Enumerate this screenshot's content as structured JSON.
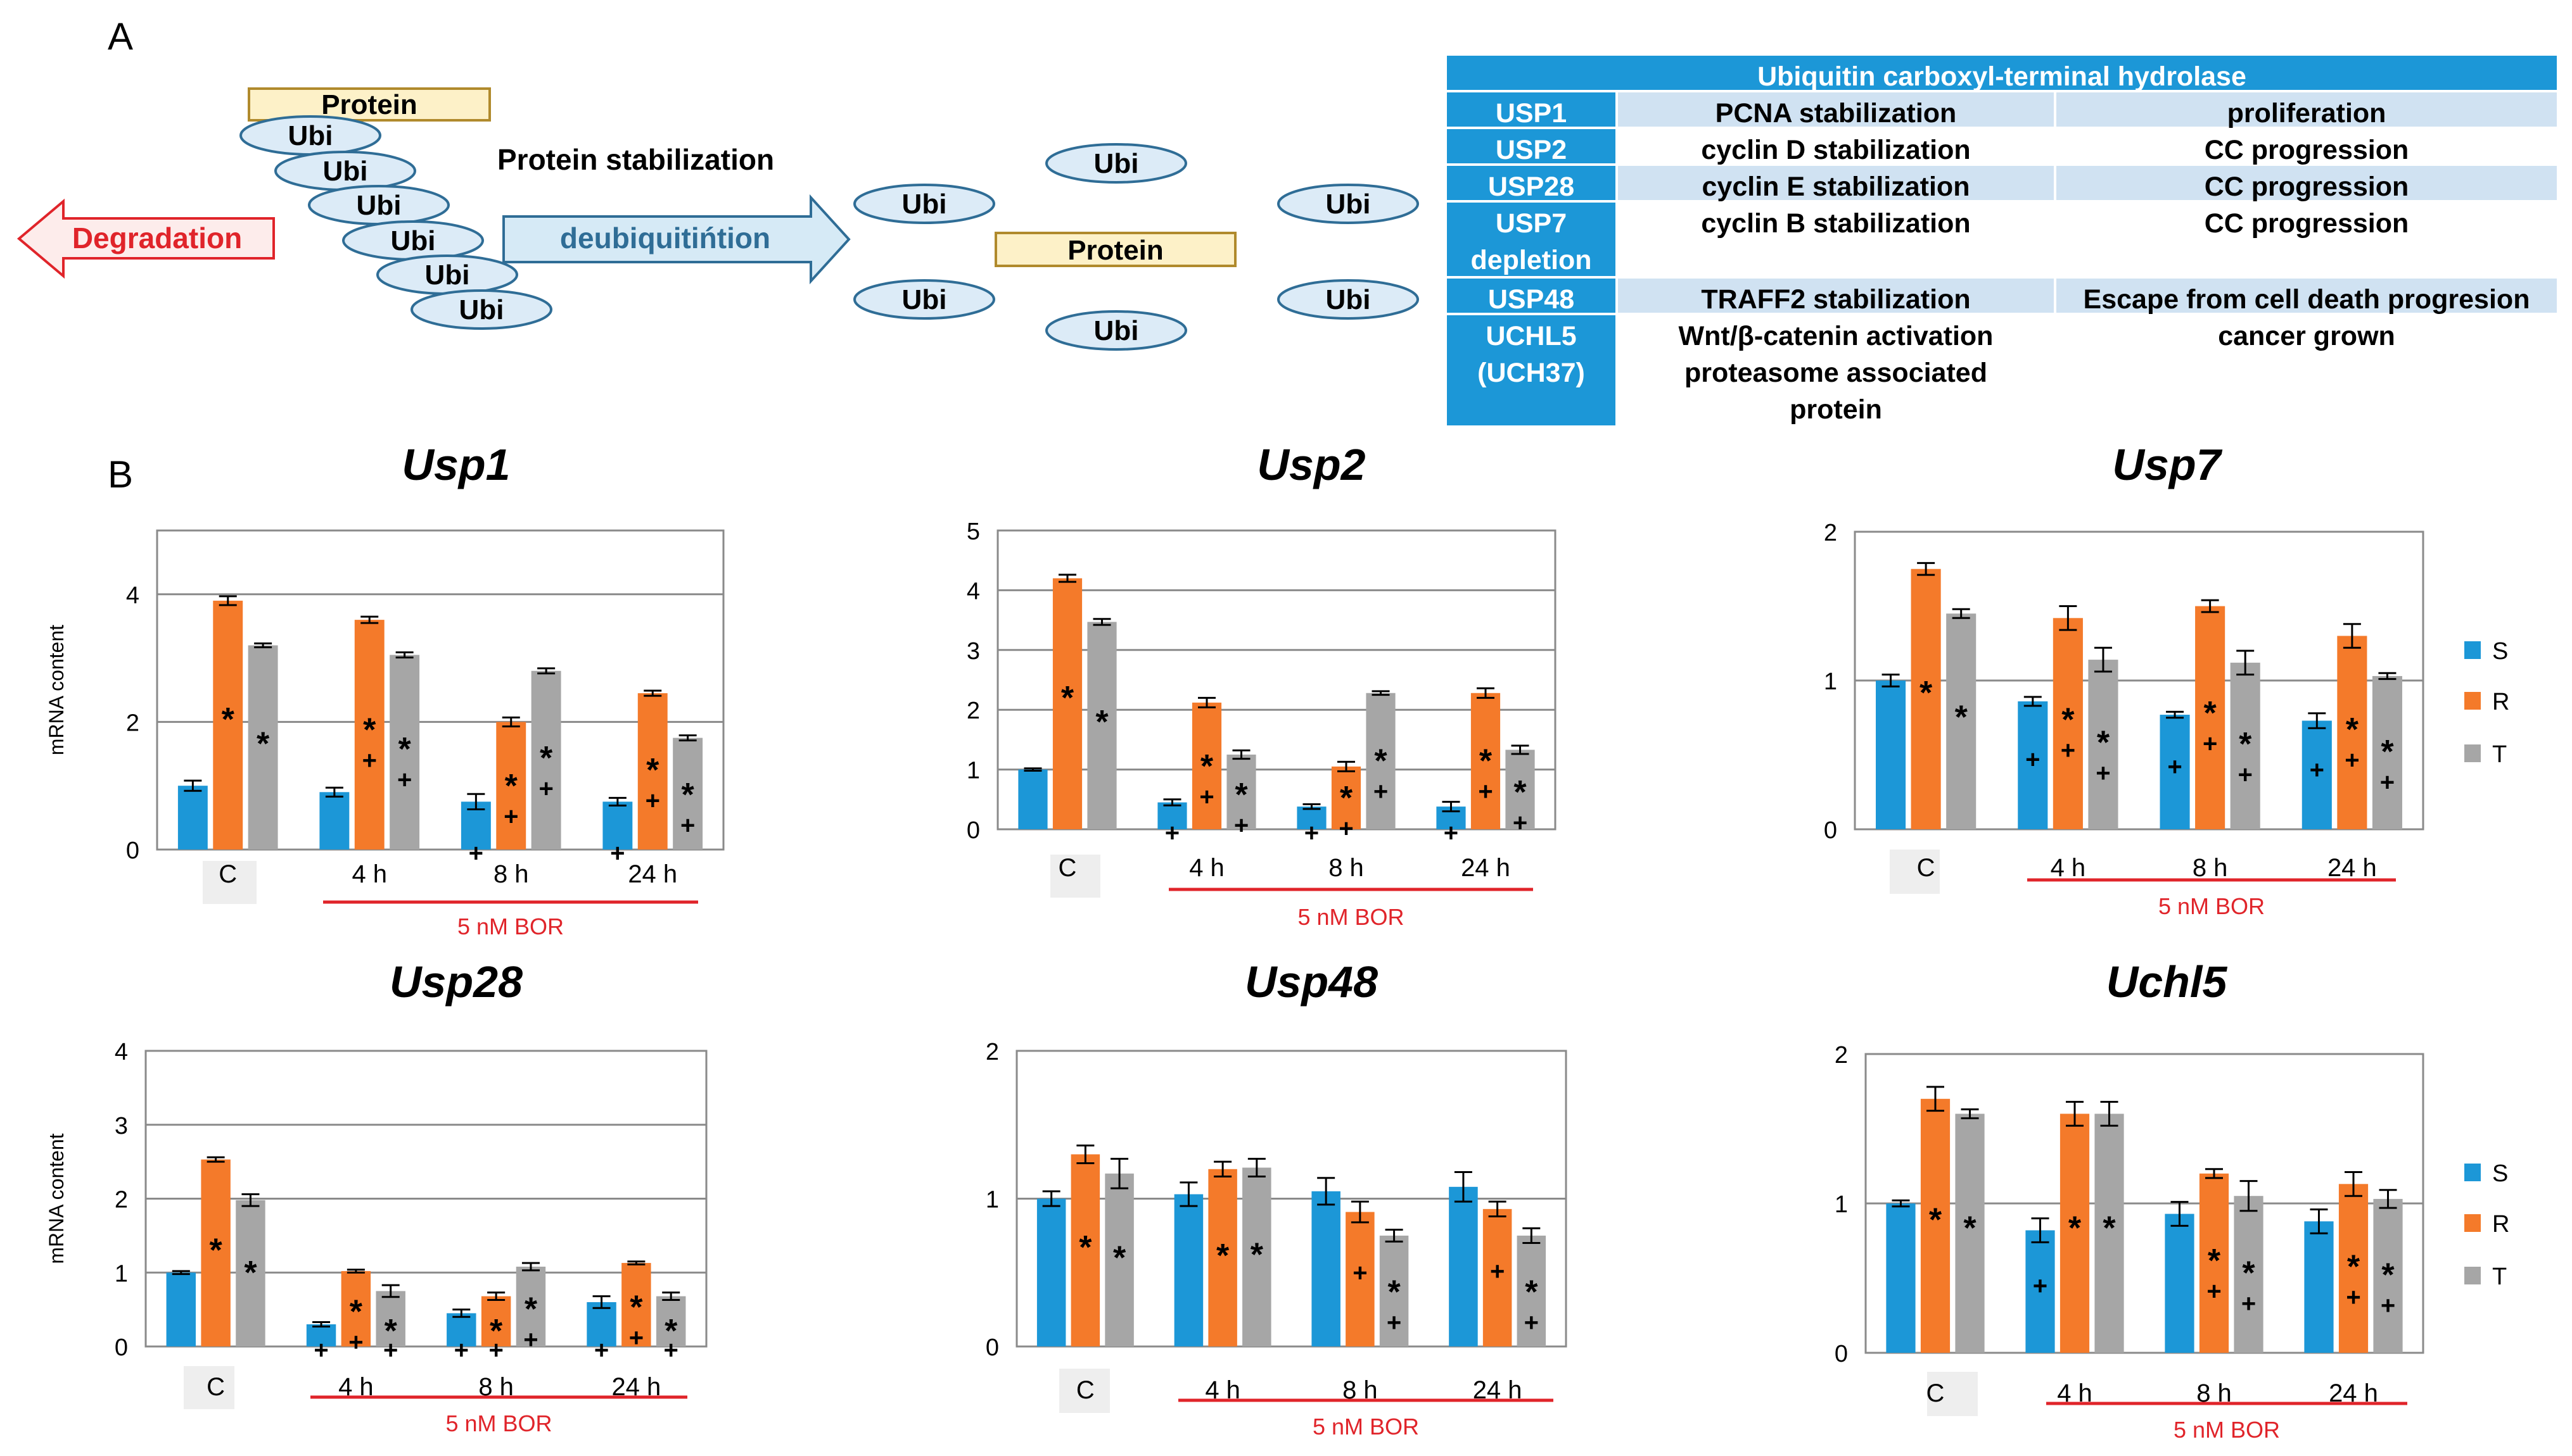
{
  "panel_labels": {
    "a": "A",
    "b": "B"
  },
  "diagram": {
    "protein_label": "Protein",
    "ubi_label": "Ubi",
    "degradation_label": "Degradation",
    "stabilization_label": "Protein stabilization",
    "deubiquitination_label": "deubiquitińtion"
  },
  "table": {
    "title": "Ubiquitin  carboxyl-terminal hydrolase",
    "rows": [
      {
        "gene": "USP1",
        "effect": "PCNA stabilization",
        "outcome": "proliferation"
      },
      {
        "gene": "USP2",
        "effect": "cyclin D stabilization",
        "outcome": "CC progression"
      },
      {
        "gene": "USP28",
        "effect": "cyclin E stabilization",
        "outcome": "CC progression"
      },
      {
        "gene": "USP7\ndepletion",
        "effect": "cyclin B stabilization",
        "outcome": "CC progression"
      },
      {
        "gene": "USP48",
        "effect": "TRAFF2 stabilization",
        "outcome": "Escape from cell death progresion"
      },
      {
        "gene": "UCHL5\n(UCH37)",
        "effect": "Wnt/β-catenin activation\nproteasome associated\nprotein",
        "outcome": "cancer grown"
      }
    ]
  },
  "colors": {
    "S": "#1c97d7",
    "R": "#f47a2a",
    "T": "#a6a6a6",
    "treatment_line": "#e0242a",
    "table_header": "#1c97d7",
    "table_light": "#d0e2f2",
    "degradation": "#e0242a",
    "deubiquitination_fill": "#d6eaf6",
    "protein_fill": "#fdf1c8",
    "ubi_fill": "#dcebf7"
  },
  "chart_data": [
    {
      "type": "bar",
      "title": "Usp1",
      "ylabel": "mRNA content",
      "ylim": [
        0,
        5
      ],
      "yticks": [
        0,
        2,
        4
      ],
      "categories": [
        "C",
        "4 h",
        "8 h",
        "24 h"
      ],
      "treatment_label": "5 nM BOR",
      "grid": true,
      "series": [
        {
          "name": "S",
          "values": [
            1.0,
            0.9,
            0.75,
            0.75
          ],
          "errors": [
            0.08,
            0.07,
            0.12,
            0.06
          ],
          "marks": [
            "",
            "",
            "+",
            "+"
          ]
        },
        {
          "name": "R",
          "values": [
            3.9,
            3.6,
            2.0,
            2.45
          ],
          "errors": [
            0.07,
            0.05,
            0.07,
            0.04
          ],
          "marks": [
            "*",
            "*\n+",
            "*\n+",
            "*\n+"
          ]
        },
        {
          "name": "T",
          "values": [
            3.2,
            3.05,
            2.8,
            1.75
          ],
          "errors": [
            0.03,
            0.04,
            0.04,
            0.04
          ],
          "marks": [
            "*",
            "*\n+",
            "*\n+",
            "*\n+"
          ]
        }
      ]
    },
    {
      "type": "bar",
      "title": "Usp2",
      "ylim": [
        0,
        5
      ],
      "yticks": [
        0,
        1,
        2,
        3,
        4,
        5
      ],
      "categories": [
        "C",
        "4 h",
        "8 h",
        "24 h"
      ],
      "treatment_label": "5 nM BOR",
      "grid": true,
      "series": [
        {
          "name": "S",
          "values": [
            1.0,
            0.45,
            0.38,
            0.38
          ],
          "errors": [
            0.02,
            0.05,
            0.04,
            0.08
          ],
          "marks": [
            "",
            "+",
            "+",
            "+"
          ]
        },
        {
          "name": "R",
          "values": [
            4.2,
            2.12,
            1.05,
            2.28
          ],
          "errors": [
            0.06,
            0.08,
            0.08,
            0.08
          ],
          "marks": [
            "*",
            "*\n+",
            "*\n+",
            "*\n+"
          ]
        },
        {
          "name": "T",
          "values": [
            3.47,
            1.25,
            2.28,
            1.33
          ],
          "errors": [
            0.05,
            0.07,
            0.03,
            0.07
          ],
          "marks": [
            "*",
            "*\n+",
            "*\n+",
            "*\n+"
          ]
        }
      ]
    },
    {
      "type": "bar",
      "title": "Usp7",
      "ylim": [
        0,
        2
      ],
      "yticks": [
        0,
        1,
        2
      ],
      "categories": [
        "C",
        "4 h",
        "8 h",
        "24 h"
      ],
      "treatment_label": "5 nM BOR",
      "grid": true,
      "legend": {
        "position": "right",
        "labels": [
          "S",
          "R",
          "T"
        ]
      },
      "series": [
        {
          "name": "S",
          "values": [
            1.0,
            0.86,
            0.77,
            0.73
          ],
          "errors": [
            0.04,
            0.03,
            0.02,
            0.05
          ],
          "marks": [
            "",
            "+",
            "+",
            "+"
          ]
        },
        {
          "name": "R",
          "values": [
            1.75,
            1.42,
            1.5,
            1.3
          ],
          "errors": [
            0.04,
            0.08,
            0.04,
            0.08
          ],
          "marks": [
            "*",
            "*\n+",
            "*\n+",
            "*\n+"
          ]
        },
        {
          "name": "T",
          "values": [
            1.45,
            1.14,
            1.12,
            1.03
          ],
          "errors": [
            0.03,
            0.08,
            0.08,
            0.02
          ],
          "marks": [
            "*",
            "*\n+",
            "*\n+",
            "*\n+"
          ]
        }
      ]
    },
    {
      "type": "bar",
      "title": "Usp28",
      "ylabel": "mRNA content",
      "ylim": [
        0,
        4
      ],
      "yticks": [
        0,
        1,
        2,
        3,
        4
      ],
      "categories": [
        "C",
        "4 h",
        "8 h",
        "24 h"
      ],
      "treatment_label": "5 nM BOR",
      "grid": true,
      "series": [
        {
          "name": "S",
          "values": [
            1.0,
            0.3,
            0.45,
            0.6
          ],
          "errors": [
            0.02,
            0.03,
            0.05,
            0.08
          ],
          "marks": [
            "",
            "+",
            "+",
            "+"
          ]
        },
        {
          "name": "R",
          "values": [
            2.53,
            1.02,
            0.68,
            1.13
          ],
          "errors": [
            0.03,
            0.02,
            0.05,
            0.02
          ],
          "marks": [
            "*",
            "*\n+",
            "*\n+",
            "*\n+"
          ]
        },
        {
          "name": "T",
          "values": [
            1.98,
            0.75,
            1.08,
            0.68
          ],
          "errors": [
            0.08,
            0.08,
            0.05,
            0.05
          ],
          "marks": [
            "*",
            "*\n+",
            "*\n+",
            "*\n+"
          ]
        }
      ]
    },
    {
      "type": "bar",
      "title": "Usp48",
      "ylim": [
        0,
        2
      ],
      "yticks": [
        0,
        1,
        2
      ],
      "categories": [
        "C",
        "4 h",
        "8 h",
        "24 h"
      ],
      "treatment_label": "5 nM BOR",
      "grid": true,
      "series": [
        {
          "name": "S",
          "values": [
            1.0,
            1.03,
            1.05,
            1.08
          ],
          "errors": [
            0.05,
            0.08,
            0.09,
            0.1
          ],
          "marks": [
            "",
            "",
            "",
            ""
          ]
        },
        {
          "name": "R",
          "values": [
            1.3,
            1.2,
            0.91,
            0.93
          ],
          "errors": [
            0.06,
            0.05,
            0.07,
            0.05
          ],
          "marks": [
            "*",
            "*",
            "+",
            "+"
          ]
        },
        {
          "name": "T",
          "values": [
            1.17,
            1.21,
            0.75,
            0.75
          ],
          "errors": [
            0.1,
            0.06,
            0.04,
            0.05
          ],
          "marks": [
            "*",
            "*",
            "*\n+",
            "*\n+"
          ]
        }
      ]
    },
    {
      "type": "bar",
      "title": "Uchl5",
      "ylim": [
        0,
        2
      ],
      "yticks": [
        0,
        1,
        2
      ],
      "categories": [
        "C",
        "4 h",
        "8 h",
        "24 h"
      ],
      "treatment_label": "5 nM BOR",
      "grid": true,
      "legend": {
        "position": "right",
        "labels": [
          "S",
          "R",
          "T"
        ]
      },
      "series": [
        {
          "name": "S",
          "values": [
            1.0,
            0.82,
            0.93,
            0.88
          ],
          "errors": [
            0.02,
            0.08,
            0.08,
            0.08
          ],
          "marks": [
            "",
            "+",
            "",
            ""
          ]
        },
        {
          "name": "R",
          "values": [
            1.7,
            1.6,
            1.2,
            1.13
          ],
          "errors": [
            0.08,
            0.08,
            0.03,
            0.08
          ],
          "marks": [
            "*",
            "*",
            "*\n+",
            "*\n+"
          ]
        },
        {
          "name": "T",
          "values": [
            1.6,
            1.6,
            1.05,
            1.03
          ],
          "errors": [
            0.03,
            0.08,
            0.1,
            0.06
          ],
          "marks": [
            "*",
            "*",
            "*\n+",
            "*\n+"
          ]
        }
      ]
    }
  ]
}
